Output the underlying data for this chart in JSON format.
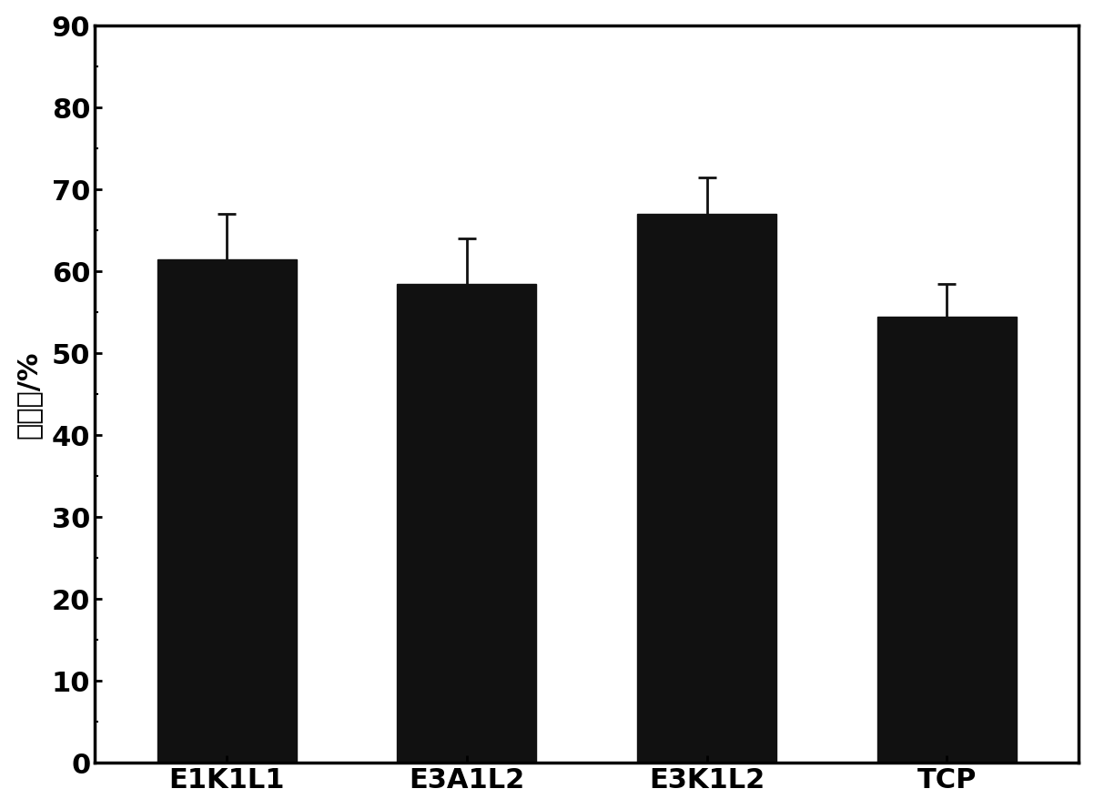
{
  "categories": [
    "E1K1L1",
    "E3A1L2",
    "E3K1L2",
    "TCP"
  ],
  "values": [
    61.5,
    58.5,
    67.0,
    54.5
  ],
  "errors": [
    5.5,
    5.5,
    4.5,
    4.0
  ],
  "bar_color": "#111111",
  "bar_width": 0.58,
  "ylabel": "分化率/%",
  "ylim": [
    0,
    90
  ],
  "yticks": [
    0,
    10,
    20,
    30,
    40,
    50,
    60,
    70,
    80,
    90
  ],
  "background_color": "#ffffff",
  "axis_linewidth": 2.5,
  "tick_fontsize": 22,
  "ylabel_fontsize": 22,
  "xlabel_fontsize": 22,
  "error_capsize": 7,
  "error_linewidth": 2.0
}
